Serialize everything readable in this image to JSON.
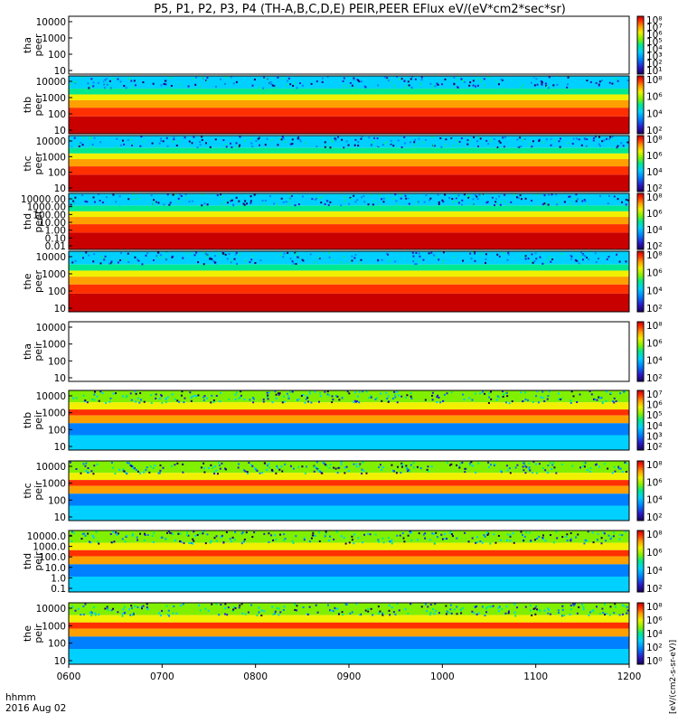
{
  "chart_data": {
    "type": "heatmap",
    "title": "P5, P1, P2, P3, P4 (TH-A,B,C,D,E) PEIR,PEER EFlux eV/(eV*cm2*sec*sr)",
    "x_label_line1": "hhmm",
    "x_label_line2": "2016 Aug 02",
    "x_ticks": [
      "0600",
      "0700",
      "0800",
      "0900",
      "1000",
      "1100",
      "1200"
    ],
    "x_range": [
      "0600",
      "1200"
    ],
    "colorbar_unit": "[eV/(cm2-s-sr-eV)]",
    "panels": [
      {
        "probe": "tha",
        "species": "peer",
        "label_top": "tha",
        "label_bottom": "peer",
        "y_ticks": [
          "10000",
          "1000",
          "100",
          "10"
        ],
        "y_log": true,
        "has_data": false,
        "cb_ticks": [
          "10⁸",
          "10⁷",
          "10⁶",
          "10⁵",
          "10⁴",
          "10³",
          "10²",
          "10¹"
        ]
      },
      {
        "probe": "thb",
        "species": "peer",
        "label_top": "thb",
        "label_bottom": "peer",
        "y_ticks": [
          "10000",
          "1000",
          "100",
          "10"
        ],
        "y_log": true,
        "has_data": true,
        "cb_ticks": [
          "10⁸",
          "10⁶",
          "10⁴",
          "10²"
        ]
      },
      {
        "probe": "thc",
        "species": "peer",
        "label_top": "thc",
        "label_bottom": "peer",
        "y_ticks": [
          "10000",
          "1000",
          "100",
          "10"
        ],
        "y_log": true,
        "has_data": true,
        "cb_ticks": [
          "10⁸",
          "10⁶",
          "10⁴",
          "10²"
        ]
      },
      {
        "probe": "thd",
        "species": "peer",
        "label_top": "thd",
        "label_bottom": "peer",
        "y_ticks": [
          "10000.00",
          "1000.00",
          "100.00",
          "10.00",
          "1.00",
          "0.10",
          "0.01"
        ],
        "y_log": true,
        "has_data": true,
        "cb_ticks": [
          "10⁸",
          "10⁶",
          "10⁴",
          "10²"
        ]
      },
      {
        "probe": "the",
        "species": "peer",
        "label_top": "the",
        "label_bottom": "peer",
        "y_ticks": [
          "10000",
          "1000",
          "100",
          "10"
        ],
        "y_log": true,
        "has_data": true,
        "cb_ticks": [
          "10⁸",
          "10⁶",
          "10⁴",
          "10²"
        ]
      },
      {
        "probe": "tha",
        "species": "peir",
        "label_top": "tha",
        "label_bottom": "peir",
        "y_ticks": [
          "10000",
          "1000",
          "100",
          "10"
        ],
        "y_log": true,
        "has_data": false,
        "cb_ticks": [
          "10⁸",
          "10⁶",
          "10⁴",
          "10²"
        ]
      },
      {
        "probe": "thb",
        "species": "peir",
        "label_top": "thb",
        "label_bottom": "peir",
        "y_ticks": [
          "10000",
          "1000",
          "100",
          "10"
        ],
        "y_log": true,
        "has_data": true,
        "cb_ticks": [
          "10⁷",
          "10⁶",
          "10⁵",
          "10⁴",
          "10³",
          "10²"
        ]
      },
      {
        "probe": "thc",
        "species": "peir",
        "label_top": "thc",
        "label_bottom": "peir",
        "y_ticks": [
          "10000",
          "1000",
          "100",
          "10"
        ],
        "y_log": true,
        "has_data": true,
        "cb_ticks": [
          "10⁸",
          "10⁶",
          "10⁴",
          "10²"
        ]
      },
      {
        "probe": "thd",
        "species": "peir",
        "label_top": "thd",
        "label_bottom": "peir",
        "y_ticks": [
          "10000.0",
          "1000.0",
          "100.0",
          "10.0",
          "1.0",
          "0.1"
        ],
        "y_log": true,
        "has_data": true,
        "cb_ticks": [
          "10⁸",
          "10⁶",
          "10⁴",
          "10²"
        ]
      },
      {
        "probe": "the",
        "species": "peir",
        "label_top": "the",
        "label_bottom": "peir",
        "y_ticks": [
          "10000",
          "1000",
          "100",
          "10"
        ],
        "y_log": true,
        "has_data": true,
        "cb_ticks": [
          "10⁸",
          "10⁶",
          "10⁴",
          "10²",
          "10⁰"
        ]
      }
    ],
    "colormap": [
      "#1a0060",
      "#2b1ccc",
      "#0080ff",
      "#00d0ff",
      "#00e890",
      "#80f000",
      "#f0f000",
      "#ffa000",
      "#ff3000",
      "#c80000"
    ]
  }
}
